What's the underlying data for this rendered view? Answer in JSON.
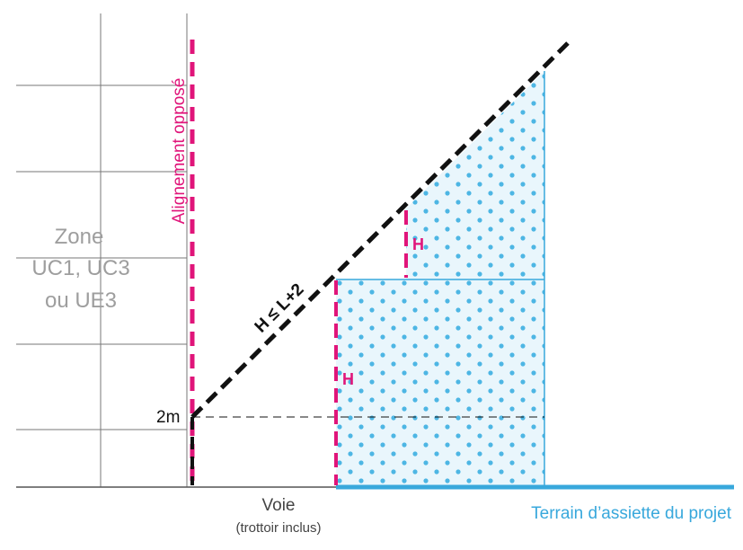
{
  "colors": {
    "magenta": "#e0157a",
    "blue": "#38a8dc",
    "fill": "#e9f6fc",
    "dot": "#4db6e4",
    "gray_text": "#9e9e9e",
    "grid": "#777777",
    "black": "#111111"
  },
  "labels": {
    "alignement": "Alignement opposé",
    "zone_line1": "Zone",
    "zone_line2": "UC1, UC3",
    "zone_line3": "ou UE3",
    "two_m": "2m",
    "formula": "H ≤ L+2",
    "h_upper": "H",
    "h_lower": "H",
    "voie": "Voie",
    "trottoir": "(trottoir inclus)",
    "terrain": "Terrain d’assiette du projet"
  }
}
